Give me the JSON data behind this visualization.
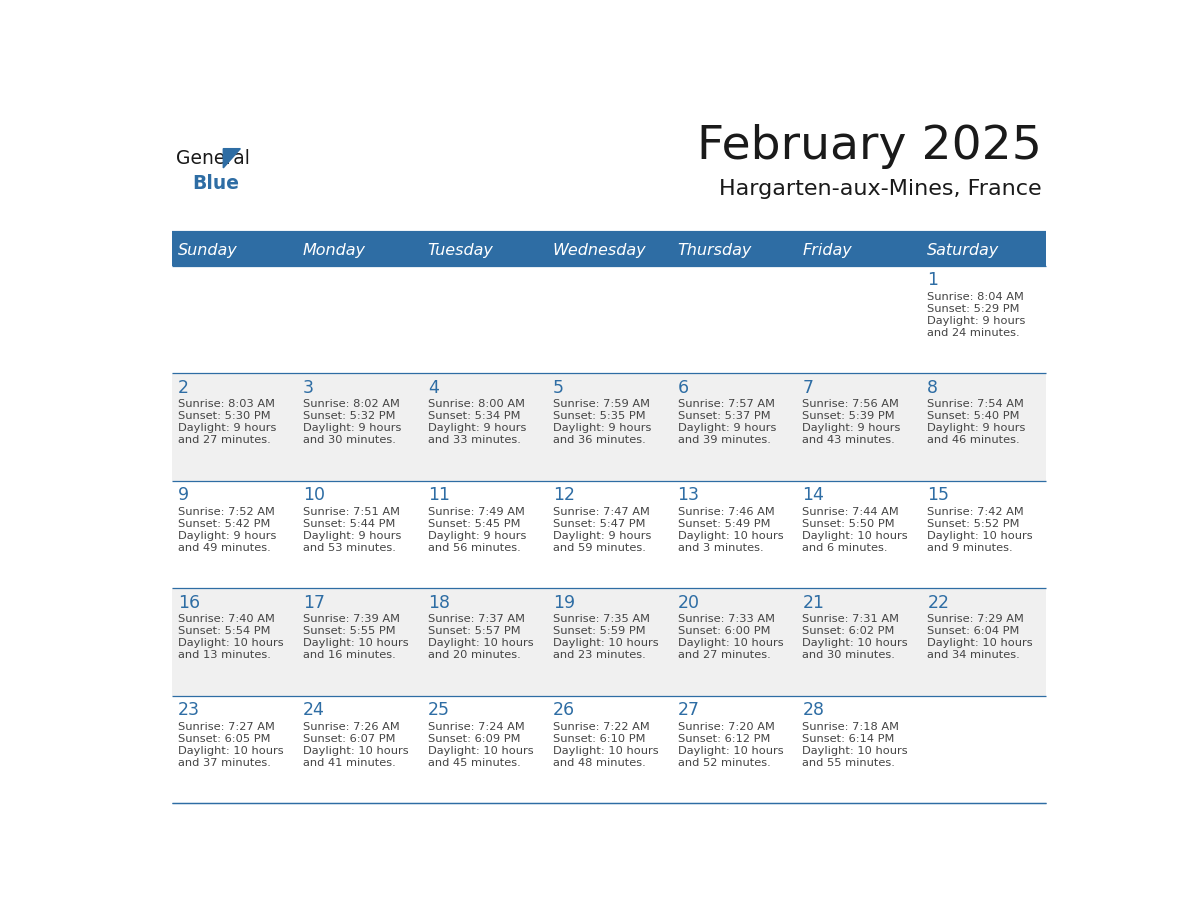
{
  "title": "February 2025",
  "subtitle": "Hargarten-aux-Mines, France",
  "days_of_week": [
    "Sunday",
    "Monday",
    "Tuesday",
    "Wednesday",
    "Thursday",
    "Friday",
    "Saturday"
  ],
  "header_bg": "#2E6DA4",
  "header_fg": "#FFFFFF",
  "cell_bg_light": "#F0F0F0",
  "cell_bg_white": "#FFFFFF",
  "border_color": "#2E6DA4",
  "text_color": "#444444",
  "day_num_color": "#2E6DA4",
  "calendar_data": [
    [
      null,
      null,
      null,
      null,
      null,
      null,
      {
        "day": 1,
        "sunrise": "8:04 AM",
        "sunset": "5:29 PM",
        "daylight": "9 hours",
        "daylight2": "and 24 minutes."
      }
    ],
    [
      {
        "day": 2,
        "sunrise": "8:03 AM",
        "sunset": "5:30 PM",
        "daylight": "9 hours",
        "daylight2": "and 27 minutes."
      },
      {
        "day": 3,
        "sunrise": "8:02 AM",
        "sunset": "5:32 PM",
        "daylight": "9 hours",
        "daylight2": "and 30 minutes."
      },
      {
        "day": 4,
        "sunrise": "8:00 AM",
        "sunset": "5:34 PM",
        "daylight": "9 hours",
        "daylight2": "and 33 minutes."
      },
      {
        "day": 5,
        "sunrise": "7:59 AM",
        "sunset": "5:35 PM",
        "daylight": "9 hours",
        "daylight2": "and 36 minutes."
      },
      {
        "day": 6,
        "sunrise": "7:57 AM",
        "sunset": "5:37 PM",
        "daylight": "9 hours",
        "daylight2": "and 39 minutes."
      },
      {
        "day": 7,
        "sunrise": "7:56 AM",
        "sunset": "5:39 PM",
        "daylight": "9 hours",
        "daylight2": "and 43 minutes."
      },
      {
        "day": 8,
        "sunrise": "7:54 AM",
        "sunset": "5:40 PM",
        "daylight": "9 hours",
        "daylight2": "and 46 minutes."
      }
    ],
    [
      {
        "day": 9,
        "sunrise": "7:52 AM",
        "sunset": "5:42 PM",
        "daylight": "9 hours",
        "daylight2": "and 49 minutes."
      },
      {
        "day": 10,
        "sunrise": "7:51 AM",
        "sunset": "5:44 PM",
        "daylight": "9 hours",
        "daylight2": "and 53 minutes."
      },
      {
        "day": 11,
        "sunrise": "7:49 AM",
        "sunset": "5:45 PM",
        "daylight": "9 hours",
        "daylight2": "and 56 minutes."
      },
      {
        "day": 12,
        "sunrise": "7:47 AM",
        "sunset": "5:47 PM",
        "daylight": "9 hours",
        "daylight2": "and 59 minutes."
      },
      {
        "day": 13,
        "sunrise": "7:46 AM",
        "sunset": "5:49 PM",
        "daylight": "10 hours",
        "daylight2": "and 3 minutes."
      },
      {
        "day": 14,
        "sunrise": "7:44 AM",
        "sunset": "5:50 PM",
        "daylight": "10 hours",
        "daylight2": "and 6 minutes."
      },
      {
        "day": 15,
        "sunrise": "7:42 AM",
        "sunset": "5:52 PM",
        "daylight": "10 hours",
        "daylight2": "and 9 minutes."
      }
    ],
    [
      {
        "day": 16,
        "sunrise": "7:40 AM",
        "sunset": "5:54 PM",
        "daylight": "10 hours",
        "daylight2": "and 13 minutes."
      },
      {
        "day": 17,
        "sunrise": "7:39 AM",
        "sunset": "5:55 PM",
        "daylight": "10 hours",
        "daylight2": "and 16 minutes."
      },
      {
        "day": 18,
        "sunrise": "7:37 AM",
        "sunset": "5:57 PM",
        "daylight": "10 hours",
        "daylight2": "and 20 minutes."
      },
      {
        "day": 19,
        "sunrise": "7:35 AM",
        "sunset": "5:59 PM",
        "daylight": "10 hours",
        "daylight2": "and 23 minutes."
      },
      {
        "day": 20,
        "sunrise": "7:33 AM",
        "sunset": "6:00 PM",
        "daylight": "10 hours",
        "daylight2": "and 27 minutes."
      },
      {
        "day": 21,
        "sunrise": "7:31 AM",
        "sunset": "6:02 PM",
        "daylight": "10 hours",
        "daylight2": "and 30 minutes."
      },
      {
        "day": 22,
        "sunrise": "7:29 AM",
        "sunset": "6:04 PM",
        "daylight": "10 hours",
        "daylight2": "and 34 minutes."
      }
    ],
    [
      {
        "day": 23,
        "sunrise": "7:27 AM",
        "sunset": "6:05 PM",
        "daylight": "10 hours",
        "daylight2": "and 37 minutes."
      },
      {
        "day": 24,
        "sunrise": "7:26 AM",
        "sunset": "6:07 PM",
        "daylight": "10 hours",
        "daylight2": "and 41 minutes."
      },
      {
        "day": 25,
        "sunrise": "7:24 AM",
        "sunset": "6:09 PM",
        "daylight": "10 hours",
        "daylight2": "and 45 minutes."
      },
      {
        "day": 26,
        "sunrise": "7:22 AM",
        "sunset": "6:10 PM",
        "daylight": "10 hours",
        "daylight2": "and 48 minutes."
      },
      {
        "day": 27,
        "sunrise": "7:20 AM",
        "sunset": "6:12 PM",
        "daylight": "10 hours",
        "daylight2": "and 52 minutes."
      },
      {
        "day": 28,
        "sunrise": "7:18 AM",
        "sunset": "6:14 PM",
        "daylight": "10 hours",
        "daylight2": "and 55 minutes."
      },
      null
    ]
  ],
  "logo_triangle_color": "#2E6DA4",
  "logo_general_color": "#1a1a1a",
  "logo_blue_color": "#2E6DA4"
}
